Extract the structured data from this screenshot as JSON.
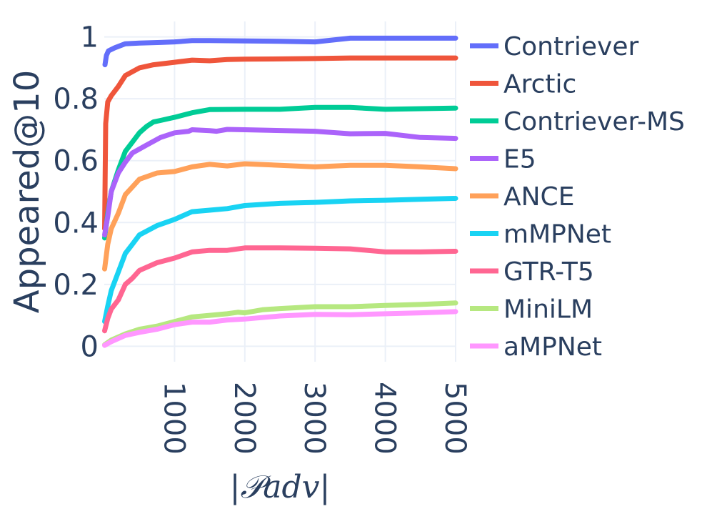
{
  "chart_data": {
    "type": "line",
    "title": "",
    "xlabel": "|𝒫adv|",
    "ylabel": "Appeared@10",
    "xlim": [
      0,
      5000
    ],
    "ylim": [
      -0.05,
      1.05
    ],
    "xticks": [
      1000,
      2000,
      3000,
      4000,
      5000
    ],
    "yticks": [
      0,
      0.2,
      0.4,
      0.6,
      0.8,
      1
    ],
    "ytick_labels": [
      "0",
      "0.2",
      "0.4",
      "0.6",
      "0.8",
      "1"
    ],
    "grid": true,
    "legend_position": "right",
    "series": [
      {
        "name": "Contriever",
        "color": "#636efa",
        "points": [
          [
            10,
            0.91
          ],
          [
            30,
            0.94
          ],
          [
            60,
            0.955
          ],
          [
            150,
            0.965
          ],
          [
            300,
            0.978
          ],
          [
            500,
            0.98
          ],
          [
            800,
            0.982
          ],
          [
            1000,
            0.984
          ],
          [
            1250,
            0.988
          ],
          [
            1500,
            0.988
          ],
          [
            2000,
            0.987
          ],
          [
            2500,
            0.986
          ],
          [
            3000,
            0.984
          ],
          [
            3500,
            0.996
          ],
          [
            4000,
            0.996
          ],
          [
            4500,
            0.996
          ],
          [
            5000,
            0.996
          ]
        ]
      },
      {
        "name": "Arctic",
        "color": "#ef553b",
        "points": [
          [
            5,
            0.38
          ],
          [
            20,
            0.72
          ],
          [
            50,
            0.79
          ],
          [
            100,
            0.81
          ],
          [
            200,
            0.84
          ],
          [
            300,
            0.875
          ],
          [
            500,
            0.9
          ],
          [
            700,
            0.91
          ],
          [
            1000,
            0.918
          ],
          [
            1250,
            0.925
          ],
          [
            1500,
            0.923
          ],
          [
            1750,
            0.927
          ],
          [
            2000,
            0.928
          ],
          [
            3000,
            0.93
          ],
          [
            3500,
            0.932
          ],
          [
            4000,
            0.932
          ],
          [
            5000,
            0.932
          ]
        ]
      },
      {
        "name": "Contriever-MS",
        "color": "#00cc96",
        "points": [
          [
            5,
            0.35
          ],
          [
            50,
            0.43
          ],
          [
            100,
            0.5
          ],
          [
            200,
            0.57
          ],
          [
            300,
            0.63
          ],
          [
            400,
            0.66
          ],
          [
            500,
            0.69
          ],
          [
            600,
            0.71
          ],
          [
            700,
            0.725
          ],
          [
            800,
            0.73
          ],
          [
            1000,
            0.74
          ],
          [
            1250,
            0.755
          ],
          [
            1500,
            0.765
          ],
          [
            2000,
            0.766
          ],
          [
            2500,
            0.766
          ],
          [
            3000,
            0.772
          ],
          [
            3500,
            0.772
          ],
          [
            4000,
            0.766
          ],
          [
            5000,
            0.77
          ]
        ]
      },
      {
        "name": "E5",
        "color": "#ab63fa",
        "points": [
          [
            5,
            0.36
          ],
          [
            50,
            0.42
          ],
          [
            100,
            0.5
          ],
          [
            200,
            0.56
          ],
          [
            300,
            0.595
          ],
          [
            400,
            0.625
          ],
          [
            600,
            0.65
          ],
          [
            800,
            0.675
          ],
          [
            1000,
            0.69
          ],
          [
            1200,
            0.695
          ],
          [
            1250,
            0.7
          ],
          [
            1500,
            0.697
          ],
          [
            1600,
            0.695
          ],
          [
            1750,
            0.701
          ],
          [
            2000,
            0.7
          ],
          [
            3000,
            0.695
          ],
          [
            3500,
            0.687
          ],
          [
            4000,
            0.688
          ],
          [
            4500,
            0.675
          ],
          [
            5000,
            0.672
          ]
        ]
      },
      {
        "name": "ANCE",
        "color": "#ffa15a",
        "points": [
          [
            5,
            0.25
          ],
          [
            50,
            0.33
          ],
          [
            100,
            0.38
          ],
          [
            200,
            0.43
          ],
          [
            300,
            0.49
          ],
          [
            400,
            0.515
          ],
          [
            500,
            0.54
          ],
          [
            750,
            0.56
          ],
          [
            1000,
            0.565
          ],
          [
            1250,
            0.58
          ],
          [
            1500,
            0.588
          ],
          [
            1750,
            0.583
          ],
          [
            2000,
            0.59
          ],
          [
            2500,
            0.585
          ],
          [
            3000,
            0.58
          ],
          [
            3500,
            0.585
          ],
          [
            4000,
            0.585
          ],
          [
            4500,
            0.58
          ],
          [
            5000,
            0.574
          ]
        ]
      },
      {
        "name": "mMPNet",
        "color": "#19d3f3",
        "points": [
          [
            5,
            0.08
          ],
          [
            50,
            0.13
          ],
          [
            100,
            0.18
          ],
          [
            200,
            0.24
          ],
          [
            300,
            0.3
          ],
          [
            400,
            0.33
          ],
          [
            500,
            0.36
          ],
          [
            750,
            0.39
          ],
          [
            1000,
            0.41
          ],
          [
            1250,
            0.435
          ],
          [
            1500,
            0.44
          ],
          [
            1750,
            0.445
          ],
          [
            2000,
            0.455
          ],
          [
            2500,
            0.462
          ],
          [
            3000,
            0.465
          ],
          [
            3500,
            0.47
          ],
          [
            4000,
            0.472
          ],
          [
            4500,
            0.475
          ],
          [
            5000,
            0.478
          ]
        ]
      },
      {
        "name": "GTR-T5",
        "color": "#ff6692",
        "points": [
          [
            5,
            0.05
          ],
          [
            50,
            0.09
          ],
          [
            100,
            0.12
          ],
          [
            200,
            0.15
          ],
          [
            300,
            0.2
          ],
          [
            400,
            0.22
          ],
          [
            500,
            0.245
          ],
          [
            750,
            0.27
          ],
          [
            1000,
            0.285
          ],
          [
            1250,
            0.305
          ],
          [
            1500,
            0.31
          ],
          [
            1750,
            0.31
          ],
          [
            2000,
            0.318
          ],
          [
            2500,
            0.318
          ],
          [
            3000,
            0.317
          ],
          [
            3500,
            0.315
          ],
          [
            4000,
            0.305
          ],
          [
            4500,
            0.305
          ],
          [
            5000,
            0.307
          ]
        ]
      },
      {
        "name": "MiniLM",
        "color": "#b6e880",
        "points": [
          [
            5,
            0.005
          ],
          [
            100,
            0.02
          ],
          [
            300,
            0.04
          ],
          [
            500,
            0.055
          ],
          [
            750,
            0.065
          ],
          [
            1000,
            0.08
          ],
          [
            1250,
            0.095
          ],
          [
            1500,
            0.1
          ],
          [
            1750,
            0.105
          ],
          [
            1900,
            0.11
          ],
          [
            2000,
            0.108
          ],
          [
            2250,
            0.118
          ],
          [
            2500,
            0.122
          ],
          [
            3000,
            0.128
          ],
          [
            3500,
            0.128
          ],
          [
            4000,
            0.132
          ],
          [
            4500,
            0.135
          ],
          [
            5000,
            0.14
          ]
        ]
      },
      {
        "name": "aMPNet",
        "color": "#ff97ff",
        "points": [
          [
            5,
            0.003
          ],
          [
            100,
            0.015
          ],
          [
            300,
            0.035
          ],
          [
            500,
            0.045
          ],
          [
            750,
            0.055
          ],
          [
            1000,
            0.07
          ],
          [
            1250,
            0.078
          ],
          [
            1500,
            0.078
          ],
          [
            1750,
            0.085
          ],
          [
            2000,
            0.088
          ],
          [
            2500,
            0.098
          ],
          [
            3000,
            0.103
          ],
          [
            3500,
            0.102
          ],
          [
            4000,
            0.105
          ],
          [
            4500,
            0.108
          ],
          [
            5000,
            0.112
          ]
        ]
      }
    ]
  }
}
